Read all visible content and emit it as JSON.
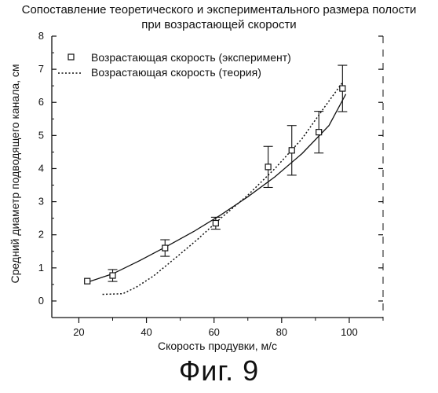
{
  "chart_data": {
    "type": "scatter",
    "title_line1": "Сопоставление теоретического и экспериментального размера полости",
    "title_line2": "при возрастающей скорости",
    "xlabel": "Скорость продувки, м/с",
    "ylabel": "Средний диаметр подводящего канала, см",
    "xlim": [
      12,
      110
    ],
    "ylim": [
      -0.5,
      8
    ],
    "xticks": [
      20,
      40,
      60,
      80,
      100
    ],
    "yticks": [
      0,
      1,
      2,
      3,
      4,
      5,
      6,
      7,
      8
    ],
    "grid": false,
    "legend_position": "top-left",
    "series": [
      {
        "name": "Возрастающая скорость (эксперимент)",
        "kind": "markers-with-errorbars",
        "x": [
          22.5,
          30,
          45.5,
          60.5,
          76,
          83,
          91,
          98
        ],
        "y": [
          0.6,
          0.77,
          1.6,
          2.35,
          4.05,
          4.55,
          5.1,
          6.42
        ],
        "err": [
          0.05,
          0.18,
          0.25,
          0.18,
          0.62,
          0.75,
          0.63,
          0.7
        ]
      },
      {
        "name": "Возрастающая скорость (теория)",
        "kind": "dotted-line",
        "x": [
          27,
          33,
          37,
          42,
          48,
          55,
          62,
          70,
          78,
          86,
          93,
          98
        ],
        "y": [
          0.2,
          0.22,
          0.42,
          0.75,
          1.25,
          1.85,
          2.5,
          3.2,
          4.0,
          4.9,
          5.9,
          6.6
        ]
      }
    ],
    "fit_line": {
      "x": [
        22,
        30,
        38,
        46,
        54,
        62,
        70,
        78,
        86,
        94,
        99
      ],
      "y": [
        0.55,
        0.82,
        1.22,
        1.65,
        2.1,
        2.6,
        3.15,
        3.75,
        4.45,
        5.3,
        6.25
      ]
    }
  },
  "figure_caption": "Фиг. 9"
}
